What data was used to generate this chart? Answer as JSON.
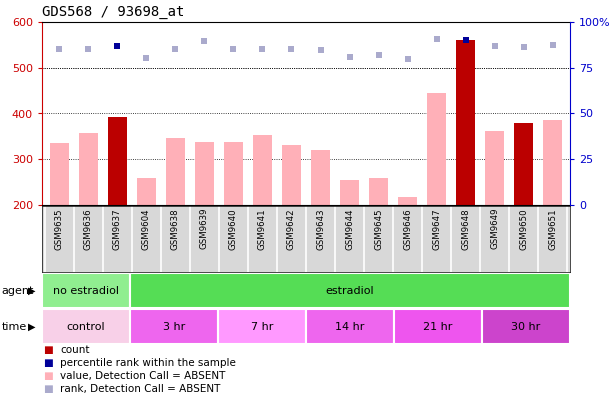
{
  "title": "GDS568 / 93698_at",
  "samples": [
    "GSM9635",
    "GSM9636",
    "GSM9637",
    "GSM9604",
    "GSM9638",
    "GSM9639",
    "GSM9640",
    "GSM9641",
    "GSM9642",
    "GSM9643",
    "GSM9644",
    "GSM9645",
    "GSM9646",
    "GSM9647",
    "GSM9648",
    "GSM9649",
    "GSM9650",
    "GSM9651"
  ],
  "bar_values": [
    335,
    358,
    392,
    258,
    347,
    338,
    338,
    352,
    332,
    320,
    254,
    260,
    217,
    445,
    560,
    362,
    380,
    385
  ],
  "bar_is_red": [
    false,
    false,
    true,
    false,
    false,
    false,
    false,
    false,
    false,
    false,
    false,
    false,
    false,
    false,
    true,
    false,
    true,
    false
  ],
  "dot_values": [
    540,
    540,
    548,
    522,
    542,
    558,
    540,
    540,
    540,
    538,
    524,
    527,
    520,
    562,
    560,
    548,
    545,
    550
  ],
  "dot_is_dark": [
    false,
    false,
    true,
    false,
    false,
    false,
    false,
    false,
    false,
    false,
    false,
    false,
    false,
    false,
    true,
    false,
    false,
    false
  ],
  "ylim_left": [
    200,
    600
  ],
  "ylim_right": [
    0,
    100
  ],
  "yticks_left": [
    200,
    300,
    400,
    500,
    600
  ],
  "ytick_labels_right": [
    "0",
    "25",
    "50",
    "75",
    "100%"
  ],
  "grid_values": [
    300,
    400,
    500
  ],
  "agent_groups": [
    {
      "label": "no estradiol",
      "start": 0,
      "end": 3,
      "color": "#90EE90"
    },
    {
      "label": "estradiol",
      "start": 3,
      "end": 18,
      "color": "#55DD55"
    }
  ],
  "time_groups": [
    {
      "label": "control",
      "start": 0,
      "end": 3,
      "color": "#F8D0E8"
    },
    {
      "label": "3 hr",
      "start": 3,
      "end": 6,
      "color": "#EE66EE"
    },
    {
      "label": "7 hr",
      "start": 6,
      "end": 9,
      "color": "#FF99FF"
    },
    {
      "label": "14 hr",
      "start": 9,
      "end": 12,
      "color": "#EE66EE"
    },
    {
      "label": "21 hr",
      "start": 12,
      "end": 15,
      "color": "#EE55EE"
    },
    {
      "label": "30 hr",
      "start": 15,
      "end": 18,
      "color": "#CC44CC"
    }
  ],
  "bar_color_absent": "#FFB0B8",
  "bar_color_red": "#BB0000",
  "dot_color_absent": "#AAAACC",
  "dot_color_dark": "#000099",
  "left_axis_color": "#CC0000",
  "right_axis_color": "#0000CC",
  "legend_items": [
    {
      "color": "#BB0000",
      "label": "count"
    },
    {
      "color": "#000099",
      "label": "percentile rank within the sample"
    },
    {
      "color": "#FFB0B8",
      "label": "value, Detection Call = ABSENT"
    },
    {
      "color": "#AAAACC",
      "label": "rank, Detection Call = ABSENT"
    }
  ]
}
